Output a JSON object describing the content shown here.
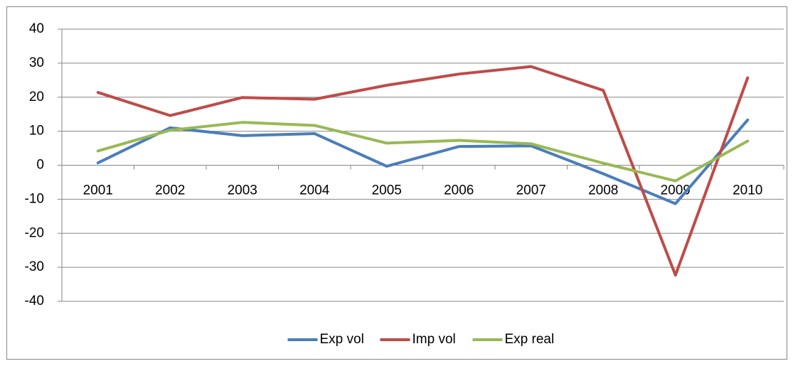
{
  "chart_data": {
    "type": "line",
    "categories": [
      "2001",
      "2002",
      "2003",
      "2004",
      "2005",
      "2006",
      "2007",
      "2008",
      "2009",
      "2010"
    ],
    "series": [
      {
        "name": "Exp vol",
        "color": "#4a7ebb",
        "values": [
          0.7,
          11,
          8.7,
          9.3,
          -0.3,
          5.5,
          5.7,
          -2.5,
          -11.3,
          13.3
        ]
      },
      {
        "name": "Imp vol",
        "color": "#be4b48",
        "values": [
          21.4,
          14.6,
          19.9,
          19.4,
          23.5,
          26.8,
          29,
          22,
          -32.3,
          25.7
        ]
      },
      {
        "name": "Exp real",
        "color": "#98b954",
        "values": [
          4.2,
          10.3,
          12.6,
          11.7,
          6.5,
          7.3,
          6.3,
          0.6,
          -4.6,
          7.1
        ]
      }
    ],
    "ylim": [
      -40,
      40
    ],
    "yticks": [
      -40,
      -30,
      -20,
      -10,
      0,
      10,
      20,
      30,
      40
    ],
    "grid": true,
    "legend": "bottom"
  }
}
